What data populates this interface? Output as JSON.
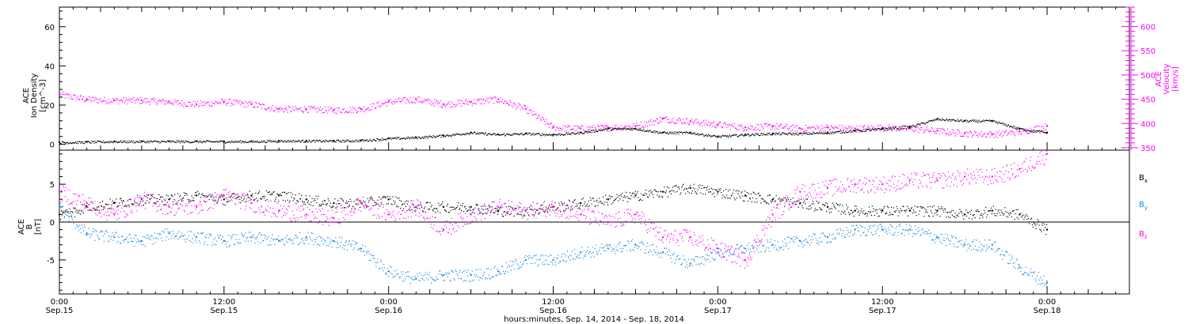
{
  "chart_data": [
    {
      "type": "scatter",
      "panel": "plasma",
      "left_axis": {
        "label_lines": [
          "ACE",
          "Ion Density",
          "[cm^-3]"
        ],
        "label_text": "ACE Ion Density [cm⁻³]",
        "ticks": [
          0,
          20,
          40,
          60
        ],
        "ylim": [
          -3,
          70
        ],
        "color": "#000000"
      },
      "right_axis": {
        "label_lines": [
          "ACE",
          "Velocity",
          "[km/s]"
        ],
        "label_text": "ACE Velocity [km/s]",
        "ticks": [
          350,
          400,
          450,
          500,
          550,
          600
        ],
        "ylim": [
          345,
          640
        ],
        "color": "#ff00ff"
      },
      "series": [
        {
          "name": "Ion Density",
          "axis": "left",
          "color": "#000000",
          "x_hours": [
            0,
            2,
            4,
            6,
            8,
            10,
            12,
            14,
            16,
            18,
            20,
            22,
            24,
            26,
            28,
            30,
            32,
            34,
            36,
            38,
            40,
            42,
            44,
            46,
            48,
            50,
            52,
            54,
            56,
            58,
            60,
            62,
            64,
            66,
            68,
            70,
            72
          ],
          "y": [
            1,
            1.2,
            1.5,
            1.5,
            1.5,
            1.5,
            1.5,
            1.5,
            1.8,
            1.8,
            1.8,
            2,
            3,
            3.5,
            4.5,
            6,
            5,
            5.5,
            5,
            6,
            8,
            8,
            6,
            6,
            4,
            5,
            5.5,
            5.5,
            6,
            7,
            8,
            9,
            13,
            12,
            12,
            8,
            6
          ]
        },
        {
          "name": "Velocity",
          "axis": "right",
          "color": "#ff00ff",
          "x_hours": [
            0,
            2,
            4,
            6,
            8,
            10,
            12,
            14,
            16,
            18,
            20,
            22,
            24,
            26,
            28,
            30,
            32,
            34,
            36,
            38,
            40,
            42,
            44,
            46,
            48,
            50,
            52,
            54,
            56,
            58,
            60,
            62,
            64,
            66,
            68,
            70,
            72
          ],
          "y": [
            460,
            450,
            448,
            448,
            445,
            440,
            445,
            440,
            430,
            430,
            428,
            430,
            445,
            450,
            440,
            445,
            450,
            430,
            392,
            390,
            392,
            395,
            410,
            405,
            398,
            392,
            395,
            390,
            392,
            390,
            392,
            390,
            385,
            380,
            378,
            383,
            395
          ]
        }
      ]
    },
    {
      "type": "scatter",
      "panel": "magnetic field",
      "left_axis": {
        "label_lines": [
          "ACE",
          "B",
          "[nT]"
        ],
        "label_text": "ACE B [nT]",
        "ticks": [
          -5,
          0,
          5
        ],
        "ylim": [
          -9.5,
          9.5
        ],
        "color": "#000000"
      },
      "reference_line_y": 0,
      "series": [
        {
          "name": "Bx",
          "color": "#000000",
          "x_hours": [
            0,
            2,
            4,
            6,
            8,
            10,
            12,
            14,
            16,
            18,
            20,
            22,
            24,
            26,
            28,
            30,
            32,
            34,
            36,
            38,
            40,
            42,
            44,
            46,
            48,
            50,
            52,
            54,
            56,
            58,
            60,
            62,
            64,
            66,
            68,
            70,
            72
          ],
          "y": [
            1,
            2,
            2.5,
            3,
            3,
            3.5,
            3,
            3.5,
            3.5,
            3,
            2.5,
            2.5,
            3,
            2,
            2,
            2,
            1.5,
            1.5,
            2,
            2.5,
            3,
            3.5,
            4,
            4.5,
            4,
            3.5,
            3,
            2.5,
            2,
            1.5,
            1.5,
            1.5,
            1.5,
            1,
            1.5,
            1,
            -1
          ]
        },
        {
          "name": "By",
          "color": "#1e88e5",
          "x_hours": [
            0,
            2,
            4,
            6,
            8,
            10,
            12,
            14,
            16,
            18,
            20,
            22,
            24,
            26,
            28,
            30,
            32,
            34,
            36,
            38,
            40,
            42,
            44,
            46,
            48,
            50,
            52,
            54,
            56,
            58,
            60,
            62,
            64,
            66,
            68,
            70,
            72
          ],
          "y": [
            2,
            -1.5,
            -2,
            -2.5,
            -1.5,
            -2,
            -2.5,
            -2,
            -2.5,
            -2,
            -2.5,
            -3.5,
            -6.5,
            -7.5,
            -7,
            -7,
            -6.5,
            -5,
            -5,
            -4,
            -3.5,
            -3,
            -4,
            -5.5,
            -4,
            -3.5,
            -3,
            -2.5,
            -2,
            -1,
            -1,
            -1,
            -2,
            -3,
            -3,
            -6,
            -8
          ]
        },
        {
          "name": "Bz",
          "color": "#ff00ff",
          "x_hours": [
            0,
            2,
            4,
            6,
            8,
            10,
            12,
            14,
            16,
            18,
            20,
            22,
            24,
            26,
            28,
            30,
            32,
            34,
            36,
            38,
            40,
            42,
            44,
            46,
            48,
            50,
            52,
            54,
            56,
            58,
            60,
            62,
            64,
            66,
            68,
            70,
            72
          ],
          "y": [
            4,
            2.5,
            1,
            3,
            2,
            2,
            3.5,
            2.5,
            1.5,
            1,
            0.5,
            2.5,
            1,
            2,
            -1,
            1,
            2,
            1.5,
            2,
            1,
            0,
            1,
            -2,
            -2,
            -3.5,
            -5,
            1,
            4,
            4.5,
            5,
            5,
            5.5,
            5.5,
            6,
            6,
            7,
            9
          ]
        }
      ],
      "legend": [
        "Bx",
        "By",
        "Bz"
      ],
      "legend_text": {
        "bx": "B",
        "bx_sub": "x",
        "by": "B",
        "by_sub": "y",
        "bz": "B",
        "bz_sub": "z"
      },
      "legend_position": "right"
    }
  ],
  "x_axis": {
    "xlim_hours": [
      0,
      78
    ],
    "major_ticks": [
      {
        "hours": 0,
        "time": "0:00",
        "date": "Sep.15"
      },
      {
        "hours": 12,
        "time": "12:00",
        "date": "Sep.15"
      },
      {
        "hours": 24,
        "time": "0:00",
        "date": "Sep.16"
      },
      {
        "hours": 36,
        "time": "12:00",
        "date": "Sep.16"
      },
      {
        "hours": 48,
        "time": "0:00",
        "date": "Sep.17"
      },
      {
        "hours": 60,
        "time": "12:00",
        "date": "Sep.17"
      },
      {
        "hours": 72,
        "time": "0:00",
        "date": "Sep.18"
      }
    ],
    "xlabel": "hours:minutes, Sep. 14, 2014 - Sep. 18, 2014"
  }
}
